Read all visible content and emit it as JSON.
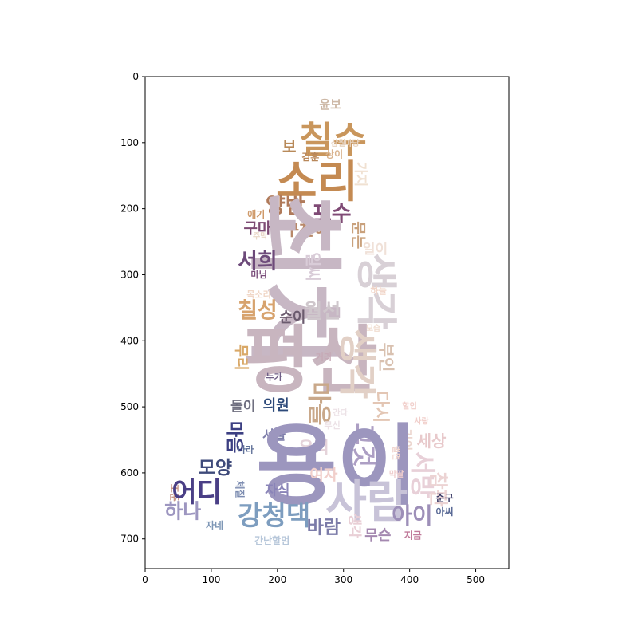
{
  "chart_data": {
    "type": "wordcloud",
    "title": "",
    "xlabel": "",
    "ylabel": "",
    "xlim": [
      0,
      550
    ],
    "ylim": [
      745,
      0
    ],
    "x_ticks": [
      "0",
      "100",
      "200",
      "300",
      "400",
      "500"
    ],
    "y_ticks": [
      "0",
      "100",
      "200",
      "300",
      "400",
      "500",
      "600",
      "700"
    ],
    "words": [
      {
        "text": "윤보",
        "x": 280,
        "y": 42,
        "size": 15,
        "vertical": false,
        "color": "#cdb8a6"
      },
      {
        "text": "칠수",
        "x": 284,
        "y": 96,
        "size": 46,
        "vertical": false,
        "color": "#c9965c"
      },
      {
        "text": "보",
        "x": 218,
        "y": 107,
        "size": 19,
        "vertical": false,
        "color": "#b88a5a"
      },
      {
        "text": "삼월",
        "x": 292,
        "y": 102,
        "size": 10,
        "vertical": false,
        "color": "#e6d2bf"
      },
      {
        "text": "마당",
        "x": 313,
        "y": 102,
        "size": 10,
        "vertical": false,
        "color": "#e6d2bf"
      },
      {
        "text": "상이",
        "x": 286,
        "y": 118,
        "size": 12,
        "vertical": false,
        "color": "#d9b38e"
      },
      {
        "text": "김훈",
        "x": 250,
        "y": 122,
        "size": 12,
        "vertical": false,
        "color": "#b9885b"
      },
      {
        "text": "가지",
        "x": 325,
        "y": 148,
        "size": 17,
        "vertical": true,
        "color": "#f0e1d2"
      },
      {
        "text": "소리",
        "x": 260,
        "y": 160,
        "size": 56,
        "vertical": false,
        "color": "#c48a52"
      },
      {
        "text": "양반",
        "x": 212,
        "y": 196,
        "size": 27,
        "vertical": false,
        "color": "#b07a5a"
      },
      {
        "text": "포수",
        "x": 282,
        "y": 208,
        "size": 27,
        "vertical": false,
        "color": "#7f4a75"
      },
      {
        "text": "애기",
        "x": 168,
        "y": 209,
        "size": 12,
        "vertical": false,
        "color": "#cf9a6a"
      },
      {
        "text": "구마",
        "x": 170,
        "y": 230,
        "size": 19,
        "vertical": false,
        "color": "#7c4a73"
      },
      {
        "text": "구천이",
        "x": 244,
        "y": 232,
        "size": 20,
        "vertical": false,
        "color": "#b88868"
      },
      {
        "text": "주막",
        "x": 174,
        "y": 243,
        "size": 10,
        "vertical": false,
        "color": "#e9d8c7"
      },
      {
        "text": "문는",
        "x": 322,
        "y": 240,
        "size": 19,
        "vertical": true,
        "color": "#c9a17c"
      },
      {
        "text": "일이",
        "x": 348,
        "y": 262,
        "size": 17,
        "vertical": false,
        "color": "#f0e1d8"
      },
      {
        "text": "최치",
        "x": 224,
        "y": 308,
        "size": 120,
        "vertical": true,
        "color": "#c7b7c4"
      },
      {
        "text": "서희",
        "x": 170,
        "y": 280,
        "size": 27,
        "vertical": false,
        "color": "#6d4a7a"
      },
      {
        "text": "일씨",
        "x": 254,
        "y": 288,
        "size": 20,
        "vertical": true,
        "color": "#d9ccd8"
      },
      {
        "text": "마님",
        "x": 172,
        "y": 300,
        "size": 11,
        "vertical": false,
        "color": "#7b4e7b"
      },
      {
        "text": "생각",
        "x": 348,
        "y": 325,
        "size": 52,
        "vertical": true,
        "color": "#d8d0d6"
      },
      {
        "text": "하늘",
        "x": 353,
        "y": 325,
        "size": 11,
        "vertical": false,
        "color": "#f0d4c7"
      },
      {
        "text": "칠성",
        "x": 170,
        "y": 355,
        "size": 27,
        "vertical": false,
        "color": "#d7a36e"
      },
      {
        "text": "순이",
        "x": 223,
        "y": 365,
        "size": 18,
        "vertical": false,
        "color": "#6b5b6e"
      },
      {
        "text": "월선",
        "x": 268,
        "y": 355,
        "size": 25,
        "vertical": false,
        "color": "#cfc7cc"
      },
      {
        "text": "목소리",
        "x": 172,
        "y": 330,
        "size": 11,
        "vertical": false,
        "color": "#f0d7c7"
      },
      {
        "text": "모습",
        "x": 345,
        "y": 382,
        "size": 10,
        "vertical": false,
        "color": "#f0ddd0"
      },
      {
        "text": "평산",
        "x": 250,
        "y": 430,
        "size": 92,
        "vertical": false,
        "color": "#c8b5bf"
      },
      {
        "text": "생각",
        "x": 320,
        "y": 435,
        "size": 48,
        "vertical": true,
        "color": "#e2d0c6"
      },
      {
        "text": "무리",
        "x": 145,
        "y": 425,
        "size": 18,
        "vertical": true,
        "color": "#d9a867"
      },
      {
        "text": "거리",
        "x": 270,
        "y": 425,
        "size": 11,
        "vertical": false,
        "color": "#c6a9b6"
      },
      {
        "text": "부인",
        "x": 365,
        "y": 425,
        "size": 20,
        "vertical": true,
        "color": "#d9c1b0"
      },
      {
        "text": "누가",
        "x": 195,
        "y": 455,
        "size": 11,
        "vertical": false,
        "color": "#6f5f86"
      },
      {
        "text": "마을",
        "x": 262,
        "y": 495,
        "size": 30,
        "vertical": true,
        "color": "#c9a88a"
      },
      {
        "text": "다시",
        "x": 355,
        "y": 500,
        "size": 22,
        "vertical": true,
        "color": "#e3c6b4"
      },
      {
        "text": "돌이",
        "x": 148,
        "y": 500,
        "size": 17,
        "vertical": false,
        "color": "#6f6f80"
      },
      {
        "text": "의원",
        "x": 198,
        "y": 498,
        "size": 18,
        "vertical": false,
        "color": "#2d4a7a"
      },
      {
        "text": "할인",
        "x": 400,
        "y": 500,
        "size": 10,
        "vertical": false,
        "color": "#f1cfcb"
      },
      {
        "text": "간다",
        "x": 295,
        "y": 510,
        "size": 10,
        "vertical": false,
        "color": "#ece1e6"
      },
      {
        "text": "사랑",
        "x": 418,
        "y": 523,
        "size": 10,
        "vertical": false,
        "color": "#f1cfcb"
      },
      {
        "text": "서울",
        "x": 195,
        "y": 543,
        "size": 16,
        "vertical": false,
        "color": "#7e7eaa"
      },
      {
        "text": "무신",
        "x": 283,
        "y": 528,
        "size": 11,
        "vertical": false,
        "color": "#ece1e6"
      },
      {
        "text": "기이",
        "x": 395,
        "y": 550,
        "size": 15,
        "vertical": true,
        "color": "#ecd6cf"
      },
      {
        "text": "마음",
        "x": 134,
        "y": 546,
        "size": 22,
        "vertical": true,
        "color": "#3c3f82"
      },
      {
        "text": "우리",
        "x": 255,
        "y": 562,
        "size": 21,
        "vertical": false,
        "color": "#e5d3da"
      },
      {
        "text": "그것",
        "x": 330,
        "y": 558,
        "size": 30,
        "vertical": true,
        "color": "#ad9fc4"
      },
      {
        "text": "세상",
        "x": 433,
        "y": 552,
        "size": 20,
        "vertical": false,
        "color": "#e8c9cb"
      },
      {
        "text": "나라",
        "x": 152,
        "y": 565,
        "size": 11,
        "vertical": false,
        "color": "#607199"
      },
      {
        "text": "용이",
        "x": 290,
        "y": 590,
        "size": 110,
        "vertical": false,
        "color": "#9c96be"
      },
      {
        "text": "벌면",
        "x": 378,
        "y": 570,
        "size": 10,
        "vertical": true,
        "color": "#f0d4ce"
      },
      {
        "text": "모양",
        "x": 106,
        "y": 593,
        "size": 23,
        "vertical": false,
        "color": "#3e4a7a"
      },
      {
        "text": "여자",
        "x": 270,
        "y": 603,
        "size": 19,
        "vertical": false,
        "color": "#f1cfcb"
      },
      {
        "text": "서방",
        "x": 420,
        "y": 603,
        "size": 32,
        "vertical": true,
        "color": "#e8d0d8"
      },
      {
        "text": "막딸",
        "x": 380,
        "y": 603,
        "size": 10,
        "vertical": false,
        "color": "#efcdcd"
      },
      {
        "text": "체질",
        "x": 143,
        "y": 625,
        "size": 12,
        "vertical": true,
        "color": "#7b8bb0"
      },
      {
        "text": "조준",
        "x": 44,
        "y": 630,
        "size": 12,
        "vertical": true,
        "color": "#c8988a"
      },
      {
        "text": "어디",
        "x": 78,
        "y": 630,
        "size": 34,
        "vertical": false,
        "color": "#4a3f86"
      },
      {
        "text": "자식",
        "x": 200,
        "y": 627,
        "size": 17,
        "vertical": false,
        "color": "#8a84b8"
      },
      {
        "text": "사람",
        "x": 335,
        "y": 645,
        "size": 56,
        "vertical": false,
        "color": "#c8c3d8"
      },
      {
        "text": "참판",
        "x": 443,
        "y": 625,
        "size": 24,
        "vertical": true,
        "color": "#ecd3d3"
      },
      {
        "text": "준구",
        "x": 453,
        "y": 638,
        "size": 12,
        "vertical": false,
        "color": "#3a3a66"
      },
      {
        "text": "하나",
        "x": 57,
        "y": 658,
        "size": 25,
        "vertical": false,
        "color": "#9d96c0"
      },
      {
        "text": "강청댁",
        "x": 195,
        "y": 665,
        "size": 33,
        "vertical": false,
        "color": "#7d9dbf"
      },
      {
        "text": "아이",
        "x": 404,
        "y": 665,
        "size": 28,
        "vertical": false,
        "color": "#9d8fb8"
      },
      {
        "text": "아씨",
        "x": 453,
        "y": 659,
        "size": 12,
        "vertical": false,
        "color": "#5a6a96"
      },
      {
        "text": "바람",
        "x": 270,
        "y": 683,
        "size": 23,
        "vertical": false,
        "color": "#7b7ba8"
      },
      {
        "text": "생각",
        "x": 316,
        "y": 680,
        "size": 17,
        "vertical": true,
        "color": "#e9cfd6"
      },
      {
        "text": "자네",
        "x": 105,
        "y": 680,
        "size": 12,
        "vertical": false,
        "color": "#7e97b6"
      },
      {
        "text": "무슨",
        "x": 352,
        "y": 695,
        "size": 18,
        "vertical": false,
        "color": "#a488b0"
      },
      {
        "text": "지금",
        "x": 405,
        "y": 695,
        "size": 12,
        "vertical": false,
        "color": "#c07a9a"
      },
      {
        "text": "간난할멈",
        "x": 192,
        "y": 703,
        "size": 12,
        "vertical": false,
        "color": "#b7c7da"
      }
    ]
  }
}
